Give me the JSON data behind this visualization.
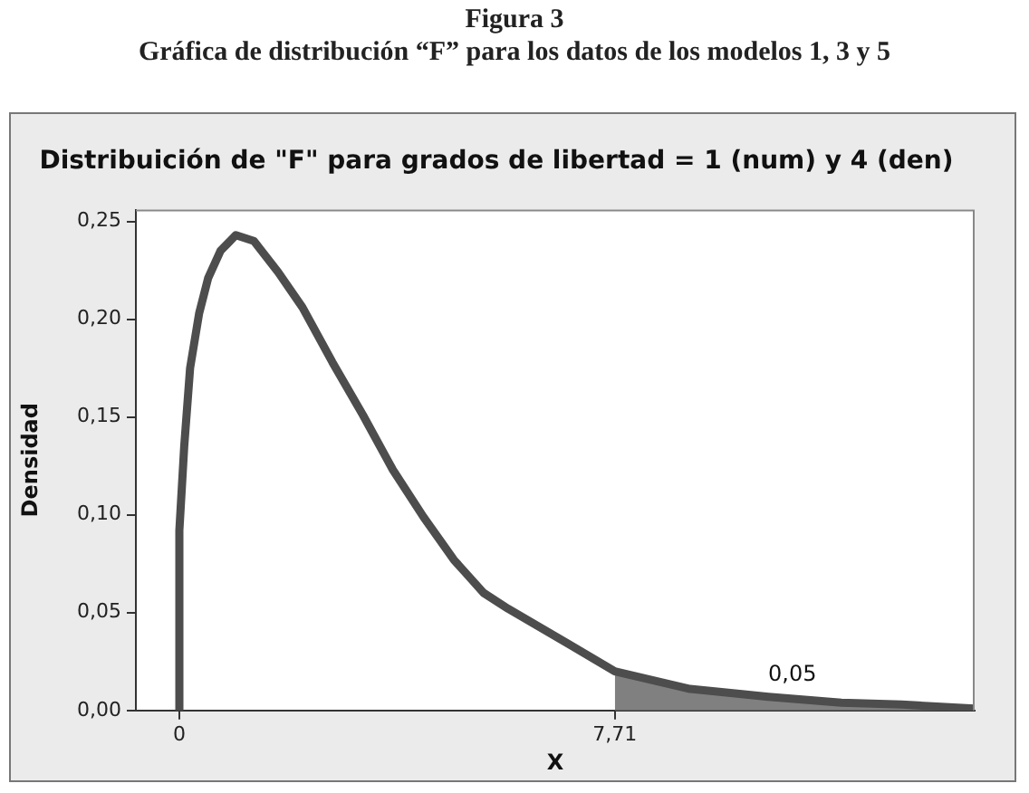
{
  "chart_data": {
    "type": "line",
    "title": "Distribuición de \"F\" para grados de libertad = 1 (num) y 4 (den)",
    "xlabel": "X",
    "ylabel": "Densidad",
    "annotations": [
      "Figura 3",
      "Gráfica de distribución “F” para los datos de los modelos 1, 3 y 5",
      "0,05"
    ],
    "xlim": [
      -0.77,
      14.08
    ],
    "xticks": [
      0,
      {
        "value": 7.71,
        "label": "7,71"
      }
    ],
    "ylim": [
      0,
      0.256
    ],
    "yticks": [
      {
        "value": 0,
        "label": "0,00"
      },
      {
        "value": 0.05,
        "label": "0,05"
      },
      {
        "value": 0.1,
        "label": "0,10"
      },
      {
        "value": 0.15,
        "label": "0,15"
      },
      {
        "value": 0.2,
        "label": "0,20"
      },
      {
        "value": 0.25,
        "label": "0,25"
      }
    ],
    "grid": false,
    "legend": false,
    "marker": "none",
    "series": [
      {
        "type": "area",
        "color": "#808080",
        "x": [
          7.71,
          9.04,
          10.43,
          11.72,
          12.79,
          14.08
        ],
        "values": [
          0.02,
          0.011,
          0.007,
          0.004,
          0.003,
          0.001
        ]
      },
      {
        "type": "line",
        "color": "#4d4d4d",
        "x": [
          0,
          0,
          0.086,
          0.19,
          0.35,
          0.51,
          0.73,
          1.0,
          1.32,
          1.75,
          2.18,
          2.71,
          3.25,
          3.78,
          4.32,
          4.86,
          5.39,
          5.82,
          6.89,
          7.71,
          9.04,
          10.43,
          11.72,
          12.79,
          14.08
        ],
        "values": [
          0,
          0.092,
          0.135,
          0.175,
          0.203,
          0.221,
          0.235,
          0.243,
          0.24,
          0.224,
          0.206,
          0.178,
          0.151,
          0.123,
          0.099,
          0.077,
          0.06,
          0.052,
          0.034,
          0.02,
          0.011,
          0.007,
          0.004,
          0.003,
          0.001
        ]
      }
    ]
  }
}
